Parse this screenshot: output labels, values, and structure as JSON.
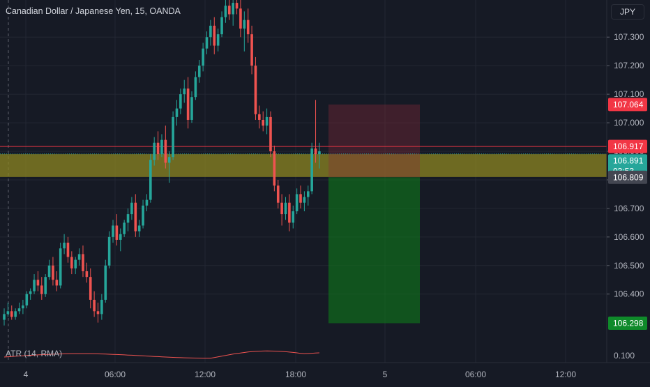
{
  "header": {
    "symbol_title": "Canadian Dollar / Japanese Yen, 15, OANDA",
    "currency_button": "JPY"
  },
  "indicator": {
    "label": "ATR (14, RMA)",
    "value_label": "0.100"
  },
  "colors": {
    "background": "#161a25",
    "up": "#26a69a",
    "down": "#ef5350",
    "zone": "#8c8522",
    "stop_zone": "#4a1f2a",
    "target_zone": "#0f5316",
    "atr_line": "#ef5350",
    "price_line": "#f23645",
    "current_price_line": "#26a69a"
  },
  "chart_data": {
    "type": "candlestick",
    "instrument": "CAD/JPY",
    "timeframe": "15",
    "price_axis": {
      "range": [
        106.16,
        107.43
      ],
      "ticks": [
        "107.300",
        "107.200",
        "107.100",
        "107.000",
        "106.900",
        "106.800",
        "106.700",
        "106.600",
        "106.500",
        "106.400"
      ]
    },
    "time_axis": {
      "ticks": [
        "4",
        "06:00",
        "12:00",
        "18:00",
        "5",
        "06:00",
        "12:00"
      ]
    },
    "price_labels": [
      {
        "name": "stop",
        "value": "107.064",
        "color": "#f23645"
      },
      {
        "name": "last-high",
        "value": "106.917",
        "color": "#f23645"
      },
      {
        "name": "current",
        "value": "106.891",
        "countdown": "03:53",
        "color": "#26a69a"
      },
      {
        "name": "entry",
        "value": "106.809",
        "color": "#434651"
      },
      {
        "name": "target",
        "value": "106.298",
        "color": "#0f8a2a"
      }
    ],
    "horizontal_zone": {
      "top": 106.89,
      "bottom": 106.81
    },
    "short_position": {
      "entry": 106.809,
      "stop": 107.064,
      "target": 106.298
    },
    "candles": [
      [
        106.31,
        106.35,
        106.29,
        106.33
      ],
      [
        106.33,
        106.37,
        106.32,
        106.34
      ],
      [
        106.34,
        106.36,
        106.31,
        106.32
      ],
      [
        106.32,
        106.35,
        106.31,
        106.34
      ],
      [
        106.34,
        106.37,
        106.33,
        106.35
      ],
      [
        106.35,
        106.38,
        106.33,
        106.36
      ],
      [
        106.36,
        106.41,
        106.35,
        106.4
      ],
      [
        106.4,
        106.42,
        106.38,
        106.41
      ],
      [
        106.41,
        106.47,
        106.4,
        106.45
      ],
      [
        106.45,
        106.48,
        106.41,
        106.43
      ],
      [
        106.43,
        106.46,
        106.38,
        106.4
      ],
      [
        106.4,
        106.47,
        106.39,
        106.46
      ],
      [
        106.46,
        106.52,
        106.45,
        106.5
      ],
      [
        106.5,
        106.53,
        106.43,
        106.45
      ],
      [
        106.45,
        106.48,
        106.41,
        106.43
      ],
      [
        106.43,
        106.58,
        106.42,
        106.56
      ],
      [
        106.56,
        106.61,
        106.54,
        106.58
      ],
      [
        106.58,
        106.6,
        106.51,
        106.53
      ],
      [
        106.53,
        106.55,
        106.47,
        106.49
      ],
      [
        106.49,
        106.53,
        106.47,
        106.52
      ],
      [
        106.52,
        106.56,
        106.5,
        106.54
      ],
      [
        106.54,
        106.57,
        106.46,
        106.48
      ],
      [
        106.48,
        106.51,
        106.44,
        106.46
      ],
      [
        106.46,
        106.49,
        106.35,
        106.38
      ],
      [
        106.38,
        106.41,
        106.32,
        106.34
      ],
      [
        106.34,
        106.37,
        106.3,
        106.33
      ],
      [
        106.33,
        106.4,
        106.31,
        106.38
      ],
      [
        106.38,
        106.52,
        106.37,
        106.5
      ],
      [
        106.5,
        106.62,
        106.49,
        106.6
      ],
      [
        106.6,
        106.66,
        106.58,
        106.64
      ],
      [
        106.64,
        106.68,
        106.57,
        106.59
      ],
      [
        106.59,
        106.63,
        106.55,
        106.61
      ],
      [
        106.61,
        106.66,
        106.6,
        106.65
      ],
      [
        106.65,
        106.7,
        106.62,
        106.68
      ],
      [
        106.68,
        106.74,
        106.66,
        106.72
      ],
      [
        106.72,
        106.75,
        106.6,
        106.62
      ],
      [
        106.62,
        106.66,
        106.6,
        106.64
      ],
      [
        106.64,
        106.73,
        106.63,
        106.71
      ],
      [
        106.71,
        106.75,
        106.69,
        106.73
      ],
      [
        106.73,
        106.89,
        106.72,
        106.87
      ],
      [
        106.87,
        106.95,
        106.85,
        106.93
      ],
      [
        106.93,
        106.97,
        106.87,
        106.89
      ],
      [
        106.89,
        106.96,
        106.88,
        106.94
      ],
      [
        106.94,
        106.99,
        106.84,
        106.86
      ],
      [
        106.86,
        106.9,
        106.79,
        106.88
      ],
      [
        106.88,
        107.04,
        106.87,
        107.02
      ],
      [
        107.02,
        107.08,
        106.99,
        107.05
      ],
      [
        107.05,
        107.12,
        107.03,
        107.1
      ],
      [
        107.1,
        107.15,
        107.07,
        107.12
      ],
      [
        107.12,
        107.16,
        106.98,
        107.01
      ],
      [
        107.01,
        107.11,
        107.0,
        107.09
      ],
      [
        107.09,
        107.18,
        107.08,
        107.16
      ],
      [
        107.16,
        107.22,
        107.14,
        107.2
      ],
      [
        107.2,
        107.28,
        107.18,
        107.26
      ],
      [
        107.26,
        107.32,
        107.24,
        107.3
      ],
      [
        107.3,
        107.36,
        107.27,
        107.34
      ],
      [
        107.34,
        107.37,
        107.24,
        107.27
      ],
      [
        107.27,
        107.33,
        107.25,
        107.31
      ],
      [
        107.31,
        107.39,
        107.3,
        107.37
      ],
      [
        107.37,
        107.43,
        107.35,
        107.41
      ],
      [
        107.41,
        107.45,
        107.36,
        107.38
      ],
      [
        107.38,
        107.44,
        107.34,
        107.42
      ],
      [
        107.42,
        107.46,
        107.38,
        107.4
      ],
      [
        107.4,
        107.44,
        107.3,
        107.33
      ],
      [
        107.33,
        107.39,
        107.25,
        107.36
      ],
      [
        107.36,
        107.4,
        107.28,
        107.31
      ],
      [
        107.31,
        107.34,
        107.17,
        107.2
      ],
      [
        107.2,
        107.23,
        107.01,
        107.03
      ],
      [
        107.03,
        107.06,
        106.98,
        107.01
      ],
      [
        107.01,
        107.04,
        106.97,
        106.99
      ],
      [
        106.99,
        107.05,
        106.96,
        107.02
      ],
      [
        107.02,
        107.04,
        106.88,
        106.9
      ],
      [
        106.9,
        106.92,
        106.76,
        106.78
      ],
      [
        106.78,
        106.8,
        106.7,
        106.72
      ],
      [
        106.72,
        106.75,
        106.64,
        106.68
      ],
      [
        106.68,
        106.74,
        106.66,
        106.72
      ],
      [
        106.72,
        106.75,
        106.62,
        106.65
      ],
      [
        106.65,
        106.71,
        106.63,
        106.69
      ],
      [
        106.69,
        106.77,
        106.68,
        106.75
      ],
      [
        106.75,
        106.78,
        106.7,
        106.72
      ],
      [
        106.72,
        106.76,
        106.69,
        106.74
      ],
      [
        106.74,
        106.78,
        106.71,
        106.76
      ],
      [
        106.76,
        106.93,
        106.75,
        106.91
      ],
      [
        106.91,
        107.08,
        106.86,
        106.89
      ],
      [
        106.89,
        106.93,
        106.84,
        106.9
      ]
    ]
  }
}
